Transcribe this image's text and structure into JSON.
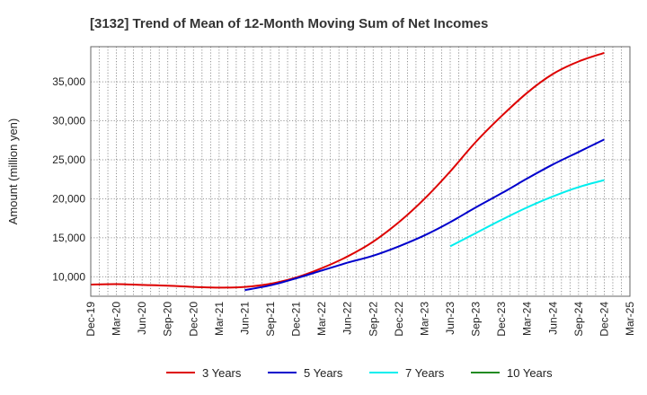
{
  "chart_data": {
    "type": "line",
    "title": "[3132]  Trend of Mean of 12-Month Moving Sum of Net Incomes",
    "xlabel": "",
    "ylabel": "Amount (million yen)",
    "ylim": [
      7500,
      39500
    ],
    "yticks": [
      10000,
      15000,
      20000,
      25000,
      30000,
      35000
    ],
    "ytick_labels": [
      "10,000",
      "15,000",
      "20,000",
      "25,000",
      "30,000",
      "35,000"
    ],
    "xlim": [
      "2019-12",
      "2025-03"
    ],
    "xtick_labels": [
      "Dec-19",
      "Mar-20",
      "Jun-20",
      "Sep-20",
      "Dec-20",
      "Mar-21",
      "Jun-21",
      "Sep-21",
      "Dec-21",
      "Mar-22",
      "Jun-22",
      "Sep-22",
      "Dec-22",
      "Mar-23",
      "Jun-23",
      "Sep-23",
      "Dec-23",
      "Mar-24",
      "Jun-24",
      "Sep-24",
      "Dec-24",
      "Mar-25"
    ],
    "grid": true,
    "legend_position": "bottom",
    "series": [
      {
        "name": "3 Years",
        "color": "#dd0000",
        "x": [
          "2019-12",
          "2020-03",
          "2020-06",
          "2020-09",
          "2020-12",
          "2021-03",
          "2021-06",
          "2021-09",
          "2021-12",
          "2022-03",
          "2022-06",
          "2022-09",
          "2022-12",
          "2023-03",
          "2023-06",
          "2023-09",
          "2023-12",
          "2024-03",
          "2024-06",
          "2024-09",
          "2024-12"
        ],
        "values": [
          9000,
          9050,
          8950,
          8850,
          8700,
          8600,
          8700,
          9100,
          9900,
          11100,
          12600,
          14500,
          17000,
          20000,
          23500,
          27300,
          30600,
          33600,
          36000,
          37600,
          38700
        ]
      },
      {
        "name": "5 Years",
        "color": "#0000cc",
        "x": [
          "2021-06",
          "2021-09",
          "2021-12",
          "2022-03",
          "2022-06",
          "2022-09",
          "2022-12",
          "2023-03",
          "2023-06",
          "2023-09",
          "2023-12",
          "2024-03",
          "2024-06",
          "2024-09",
          "2024-12"
        ],
        "values": [
          8300,
          8900,
          9800,
          10800,
          11800,
          12700,
          13900,
          15300,
          17000,
          18900,
          20700,
          22600,
          24400,
          26000,
          27600
        ]
      },
      {
        "name": "7 Years",
        "color": "#00eeee",
        "x": [
          "2023-06",
          "2023-09",
          "2023-12",
          "2024-03",
          "2024-06",
          "2024-09",
          "2024-12"
        ],
        "values": [
          13900,
          15600,
          17300,
          18900,
          20300,
          21500,
          22400
        ]
      },
      {
        "name": "10 Years",
        "color": "#228b22",
        "x": [],
        "values": []
      }
    ]
  }
}
